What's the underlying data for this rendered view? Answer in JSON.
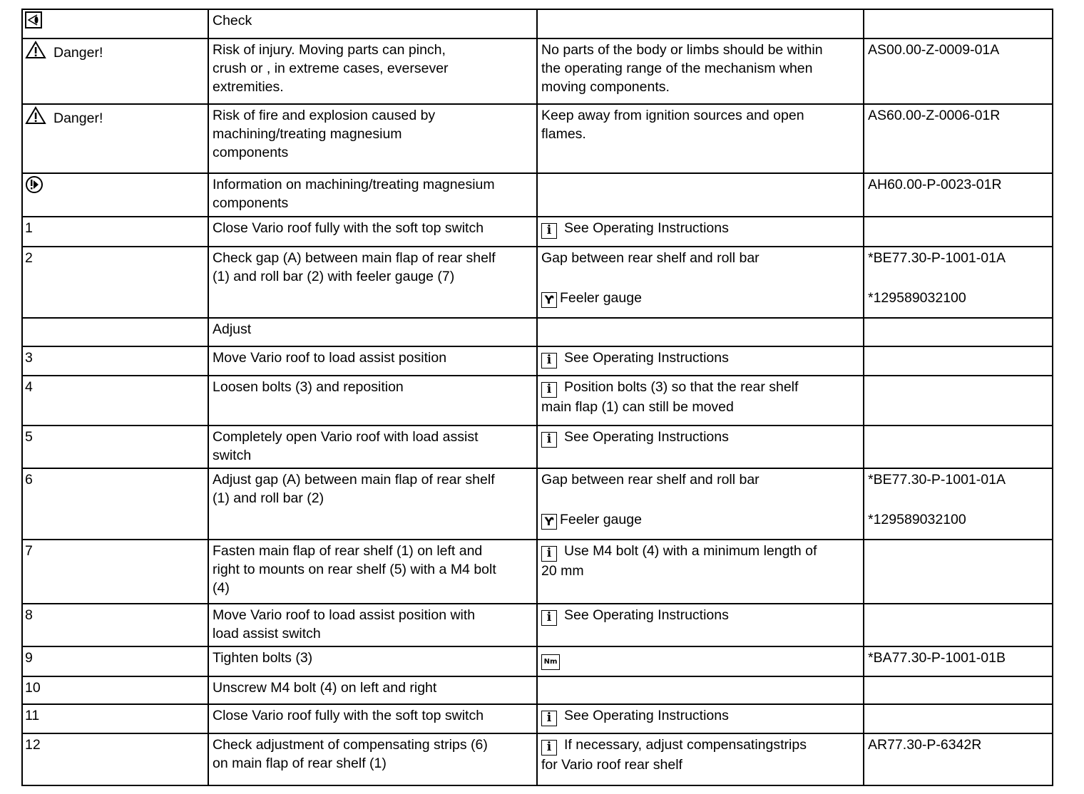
{
  "rows": [
    {
      "num": "",
      "icon": "eye-check-icon",
      "label": "",
      "desc": "Check",
      "note": "",
      "note_icon": "",
      "ref": "",
      "ref2": ""
    },
    {
      "num": "",
      "icon": "warning-triangle-icon",
      "label": "Danger!",
      "desc": "Risk of injury.     Moving parts can pinch,\ncrush or  , in  extreme cases,    eversever\nextremities.",
      "note": "No parts of the body or limbs should be within\nthe operating range of the mechanism when\nmoving components.",
      "note_icon": "",
      "ref": "AS00.00-Z-0009-01A",
      "ref2": ""
    },
    {
      "num": "",
      "icon": "warning-triangle-icon",
      "label": "Danger!",
      "desc": "Risk of fire and explosion caused by\nmachining/treating magnesium\ncomponents",
      "note": "Keep away from ignition sources and open\nflames.",
      "note_icon": "",
      "ref": "AS60.00-Z-0006-01R",
      "ref2": ""
    },
    {
      "num": "",
      "icon": "info-circle-icon",
      "label": "",
      "desc": "Information on machining/treating magnesium\ncomponents",
      "note": "",
      "note_icon": "",
      "ref": "AH60.00-P-0023-01R",
      "ref2": ""
    },
    {
      "num": "1",
      "icon": "",
      "label": "",
      "desc": "Close Vario roof fully with the soft top switch",
      "note": "See Operating   Instructions",
      "note_icon": "i",
      "ref": "",
      "ref2": ""
    },
    {
      "num": "2",
      "icon": "",
      "label": "",
      "desc": "Check gap (A) between main flap of rear shelf\n(1) and roll bar (2) with feeler gauge (7)",
      "note": "Gap between rear shelf and roll bar",
      "note_icon": "",
      "tool": "Feeler   gauge",
      "ref": "*BE77.30-P-1001-01A",
      "ref2": "*129589032100"
    },
    {
      "num": "",
      "icon": "",
      "label": "",
      "desc": "Adjust",
      "note": "",
      "note_icon": "",
      "ref": "",
      "ref2": ""
    },
    {
      "num": "3",
      "icon": "",
      "label": "",
      "desc": "Move Vario roof to load assist position",
      "note": "See Operating   Instructions",
      "note_icon": "i",
      "ref": "",
      "ref2": ""
    },
    {
      "num": "4",
      "icon": "",
      "label": "",
      "desc": "Loosen bolts (3) and reposition",
      "note": "Position bolts (3)  so that the rear shelf\nmain flap (1) can still be moved",
      "note_icon": "i",
      "ref": "",
      "ref2": ""
    },
    {
      "num": "5",
      "icon": "",
      "label": "",
      "desc": "Completely open Vario roof with load assist\nswitch",
      "note": "See Operating   Instructions",
      "note_icon": "i",
      "ref": "",
      "ref2": ""
    },
    {
      "num": "6",
      "icon": "",
      "label": "",
      "desc": "Adjust gap (A) between main flap of rear shelf\n(1) and roll bar (2)",
      "note": "Gap between rear shelf and roll bar",
      "note_icon": "",
      "tool": "Feeler   gauge",
      "ref": "*BE77.30-P-1001-01A",
      "ref2": "*129589032100"
    },
    {
      "num": "7",
      "icon": "",
      "label": "",
      "desc": "Fasten main flap of rear shelf (1) on left and\nright to mounts on rear shelf (5) with a M4 bolt\n(4)",
      "note": "Use M4 bolt (4) with a minimum length of\n20 mm",
      "note_icon": "i",
      "ref": "",
      "ref2": ""
    },
    {
      "num": "8",
      "icon": "",
      "label": "",
      "desc": "Move Vario roof to load assist position with\nload assist switch",
      "note": "See Operating   Instructions",
      "note_icon": "i",
      "ref": "",
      "ref2": ""
    },
    {
      "num": "9",
      "icon": "",
      "label": "",
      "desc": "Tighten bolts (3)",
      "note": "",
      "note_icon": "Nm",
      "ref": "*BA77.30-P-1001-01B",
      "ref2": ""
    },
    {
      "num": "10",
      "icon": "",
      "label": "",
      "desc": "Unscrew M4 bolt (4) on left and right",
      "note": "",
      "note_icon": "",
      "ref": "",
      "ref2": ""
    },
    {
      "num": "11",
      "icon": "",
      "label": "",
      "desc": "Close Vario roof fully with the soft top switch",
      "note": "See Operating   Instructions",
      "note_icon": "i",
      "ref": "",
      "ref2": ""
    },
    {
      "num": "12",
      "icon": "",
      "label": "",
      "desc": "Check adjustment of compensating strips (6)\non main flap of rear shelf (1)",
      "note": "If necessary, adjust compensatingstrips\nfor Vario roof rear shelf",
      "note_icon": "i",
      "ref": "AR77.30-P-6342R",
      "ref2": ""
    }
  ]
}
